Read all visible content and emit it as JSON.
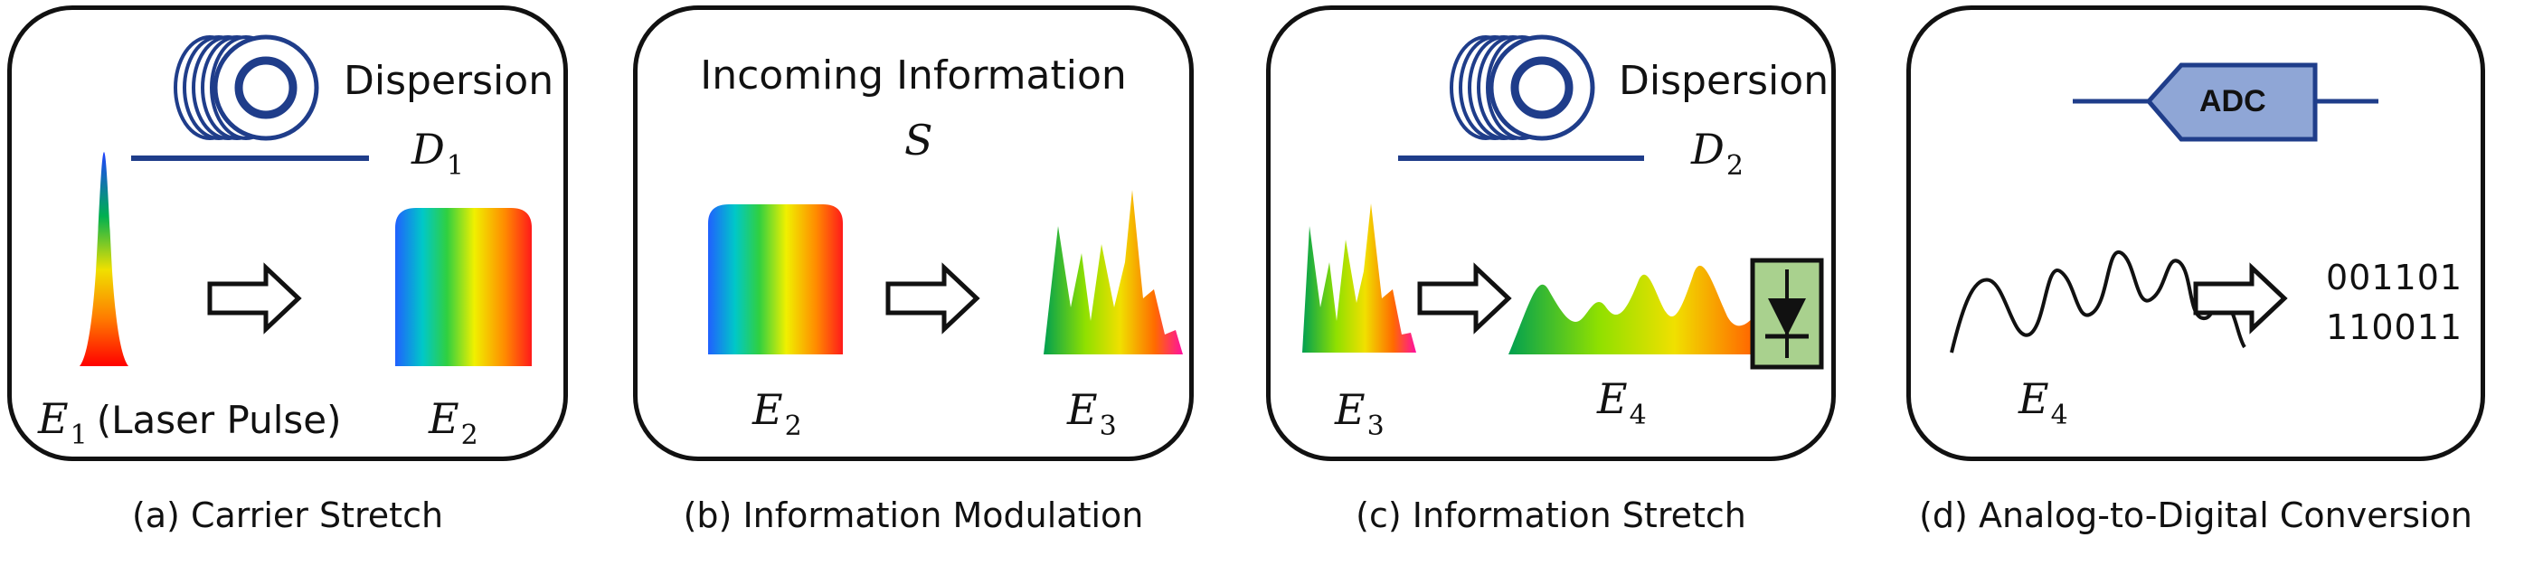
{
  "panels": [
    {
      "caption": "(a) Carrier Stretch",
      "dispersion_label": "Dispersion",
      "dispersion_symbol": "D",
      "dispersion_subscript": "1",
      "input_symbol": "E",
      "input_subscript": "1",
      "input_note": "(Laser Pulse)",
      "output_symbol": "E",
      "output_subscript": "2"
    },
    {
      "caption": "(b) Information Modulation",
      "title": "Incoming Information",
      "signal_symbol": "S",
      "input_symbol": "E",
      "input_subscript": "2",
      "output_symbol": "E",
      "output_subscript": "3"
    },
    {
      "caption": "(c) Information Stretch",
      "dispersion_label": "Dispersion",
      "dispersion_symbol": "D",
      "dispersion_subscript": "2",
      "input_symbol": "E",
      "input_subscript": "3",
      "output_symbol": "E",
      "output_subscript": "4"
    },
    {
      "caption": "(d) Analog-to-Digital Conversion",
      "adc_label": "ADC",
      "input_symbol": "E",
      "input_subscript": "4",
      "bits": [
        "001101",
        "110011"
      ]
    }
  ],
  "icons": [
    "fiber-spool-icon",
    "right-arrow-icon",
    "photodetector-icon",
    "adc-icon"
  ],
  "colors": {
    "border": "#111111",
    "spool_blue": "#1f3d8a",
    "adc_fill": "#8fa6d6",
    "detector_fill": "#a9d18e"
  }
}
